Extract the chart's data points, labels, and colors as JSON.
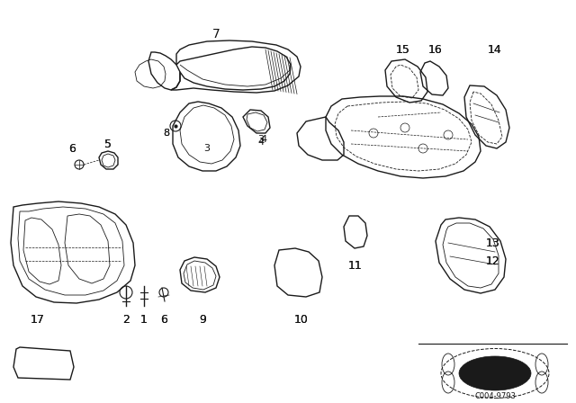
{
  "bg_color": "#ffffff",
  "line_color": "#1a1a1a",
  "label_color": "#111111",
  "fig_width": 6.4,
  "fig_height": 4.48,
  "dpi": 100,
  "watermark": "C004-9793"
}
